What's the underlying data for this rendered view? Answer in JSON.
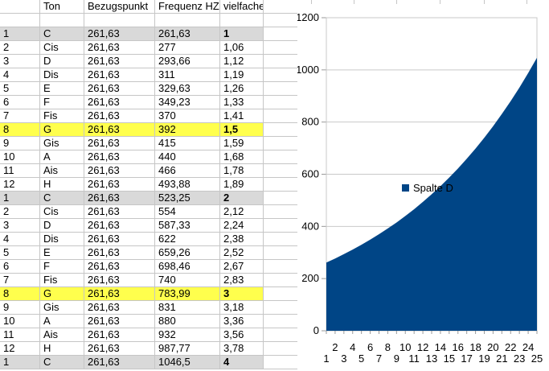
{
  "sheet": {
    "headers": [
      "",
      "Ton",
      "Bezugspunkt",
      "Frequenz HZ",
      "vielfache"
    ],
    "rows": [
      {
        "n": "1",
        "ton": "C",
        "bezug": "261,63",
        "freq": "261,63",
        "viel": "1",
        "hl": "gray"
      },
      {
        "n": "2",
        "ton": "Cis",
        "bezug": "261,63",
        "freq": "277",
        "viel": "1,06",
        "hl": null
      },
      {
        "n": "3",
        "ton": "D",
        "bezug": "261,63",
        "freq": "293,66",
        "viel": "1,12",
        "hl": null
      },
      {
        "n": "4",
        "ton": "Dis",
        "bezug": "261,63",
        "freq": "311",
        "viel": "1,19",
        "hl": null
      },
      {
        "n": "5",
        "ton": "E",
        "bezug": "261,63",
        "freq": "329,63",
        "viel": "1,26",
        "hl": null
      },
      {
        "n": "6",
        "ton": "F",
        "bezug": "261,63",
        "freq": "349,23",
        "viel": "1,33",
        "hl": null
      },
      {
        "n": "7",
        "ton": "Fis",
        "bezug": "261,63",
        "freq": "370",
        "viel": "1,41",
        "hl": null
      },
      {
        "n": "8",
        "ton": "G",
        "bezug": "261,63",
        "freq": "392",
        "viel": "1,5",
        "hl": "yellow"
      },
      {
        "n": "9",
        "ton": "Gis",
        "bezug": "261,63",
        "freq": "415",
        "viel": "1,59",
        "hl": null
      },
      {
        "n": "10",
        "ton": "A",
        "bezug": "261,63",
        "freq": "440",
        "viel": "1,68",
        "hl": null
      },
      {
        "n": "11",
        "ton": "Ais",
        "bezug": "261,63",
        "freq": "466",
        "viel": "1,78",
        "hl": null
      },
      {
        "n": "12",
        "ton": "H",
        "bezug": "261,63",
        "freq": "493,88",
        "viel": "1,89",
        "hl": null
      },
      {
        "n": "1",
        "ton": "C",
        "bezug": "261,63",
        "freq": "523,25",
        "viel": "2",
        "hl": "gray"
      },
      {
        "n": "2",
        "ton": "Cis",
        "bezug": "261,63",
        "freq": "554",
        "viel": "2,12",
        "hl": null
      },
      {
        "n": "3",
        "ton": "D",
        "bezug": "261,63",
        "freq": "587,33",
        "viel": "2,24",
        "hl": null
      },
      {
        "n": "4",
        "ton": "Dis",
        "bezug": "261,63",
        "freq": "622",
        "viel": "2,38",
        "hl": null
      },
      {
        "n": "5",
        "ton": "E",
        "bezug": "261,63",
        "freq": "659,26",
        "viel": "2,52",
        "hl": null
      },
      {
        "n": "6",
        "ton": "F",
        "bezug": "261,63",
        "freq": "698,46",
        "viel": "2,67",
        "hl": null
      },
      {
        "n": "7",
        "ton": "Fis",
        "bezug": "261,63",
        "freq": "740",
        "viel": "2,83",
        "hl": null
      },
      {
        "n": "8",
        "ton": "G",
        "bezug": "261,63",
        "freq": "783,99",
        "viel": "3",
        "hl": "yellow"
      },
      {
        "n": "9",
        "ton": "Gis",
        "bezug": "261,63",
        "freq": "831",
        "viel": "3,18",
        "hl": null
      },
      {
        "n": "10",
        "ton": "A",
        "bezug": "261,63",
        "freq": "880",
        "viel": "3,36",
        "hl": null
      },
      {
        "n": "11",
        "ton": "Ais",
        "bezug": "261,63",
        "freq": "932",
        "viel": "3,56",
        "hl": null
      },
      {
        "n": "12",
        "ton": "H",
        "bezug": "261,63",
        "freq": "987,77",
        "viel": "3,78",
        "hl": null
      },
      {
        "n": "1",
        "ton": "C",
        "bezug": "261,63",
        "freq": "1046,5",
        "viel": "4",
        "hl": "gray"
      }
    ]
  },
  "chart_data": {
    "type": "area",
    "title": "",
    "legend_label": "Spalte D",
    "legend_position": "center",
    "grid": "horizontal",
    "x": [
      1,
      2,
      3,
      4,
      5,
      6,
      7,
      8,
      9,
      10,
      11,
      12,
      13,
      14,
      15,
      16,
      17,
      18,
      19,
      20,
      21,
      22,
      23,
      24,
      25
    ],
    "series": [
      {
        "name": "Spalte D",
        "values": [
          261.63,
          277,
          293.66,
          311,
          329.63,
          349.23,
          370,
          392,
          415,
          440,
          466,
          493.88,
          523.25,
          554,
          587.33,
          622,
          659.26,
          698.46,
          740,
          783.99,
          831,
          880,
          932,
          987.77,
          1046.5
        ]
      }
    ],
    "ylim": [
      0,
      1200
    ],
    "ytick_step": 200,
    "xlabel": "",
    "ylabel": ""
  },
  "colors": {
    "series_blue": "#004586",
    "highlight_gray": "#d9d9d9",
    "highlight_yellow": "#ffff4d",
    "sheet_gridline": "#c6c6c6",
    "chart_gridline": "#c9c9c9"
  }
}
